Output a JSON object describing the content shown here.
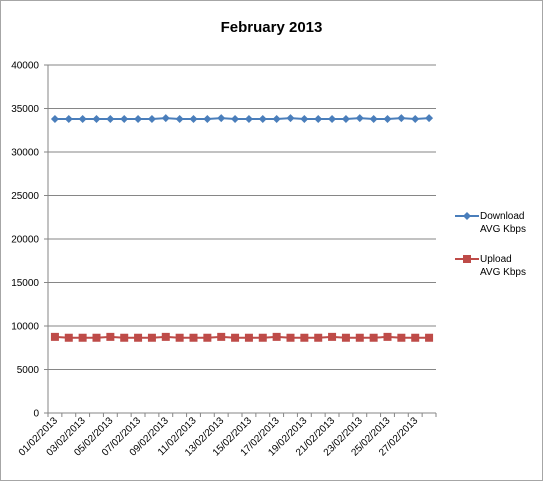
{
  "chart_data": {
    "type": "line",
    "title": "February 2013",
    "ylim": [
      0,
      40000
    ],
    "yticks": [
      "0",
      "5000",
      "10000",
      "15000",
      "20000",
      "25000",
      "30000",
      "35000",
      "40000"
    ],
    "x": [
      "01/02/2013",
      "02/02/2013",
      "03/02/2013",
      "04/02/2013",
      "05/02/2013",
      "06/02/2013",
      "07/02/2013",
      "08/02/2013",
      "09/02/2013",
      "10/02/2013",
      "11/02/2013",
      "12/02/2013",
      "13/02/2013",
      "14/02/2013",
      "15/02/2013",
      "16/02/2013",
      "17/02/2013",
      "18/02/2013",
      "19/02/2013",
      "20/02/2013",
      "21/02/2013",
      "22/02/2013",
      "23/02/2013",
      "24/02/2013",
      "25/02/2013",
      "26/02/2013",
      "27/02/2013",
      "28/02/2013"
    ],
    "xtick_labels": [
      "01/02/2013",
      "03/02/2013",
      "05/02/2013",
      "07/02/2013",
      "09/02/2013",
      "11/02/2013",
      "13/02/2013",
      "15/02/2013",
      "17/02/2013",
      "19/02/2013",
      "21/02/2013",
      "23/02/2013",
      "25/02/2013",
      "27/02/2013"
    ],
    "grid": true,
    "legend_position": "right",
    "series": [
      {
        "name": "Download AVG Kbps",
        "legend_lines": [
          "Download",
          "AVG Kbps"
        ],
        "color": "#4a7ebb",
        "marker": "diamond",
        "values": [
          33800,
          33800,
          33800,
          33800,
          33800,
          33800,
          33800,
          33800,
          33900,
          33800,
          33800,
          33800,
          33900,
          33800,
          33800,
          33800,
          33800,
          33900,
          33800,
          33800,
          33800,
          33800,
          33900,
          33800,
          33800,
          33900,
          33800,
          33900
        ]
      },
      {
        "name": "Upload AVG Kbps",
        "legend_lines": [
          "Upload",
          "AVG Kbps"
        ],
        "color": "#be4b48",
        "marker": "square",
        "values": [
          8750,
          8650,
          8650,
          8650,
          8750,
          8650,
          8650,
          8650,
          8750,
          8650,
          8650,
          8650,
          8750,
          8650,
          8650,
          8650,
          8750,
          8650,
          8650,
          8650,
          8750,
          8650,
          8650,
          8650,
          8750,
          8650,
          8650,
          8650
        ]
      }
    ]
  }
}
